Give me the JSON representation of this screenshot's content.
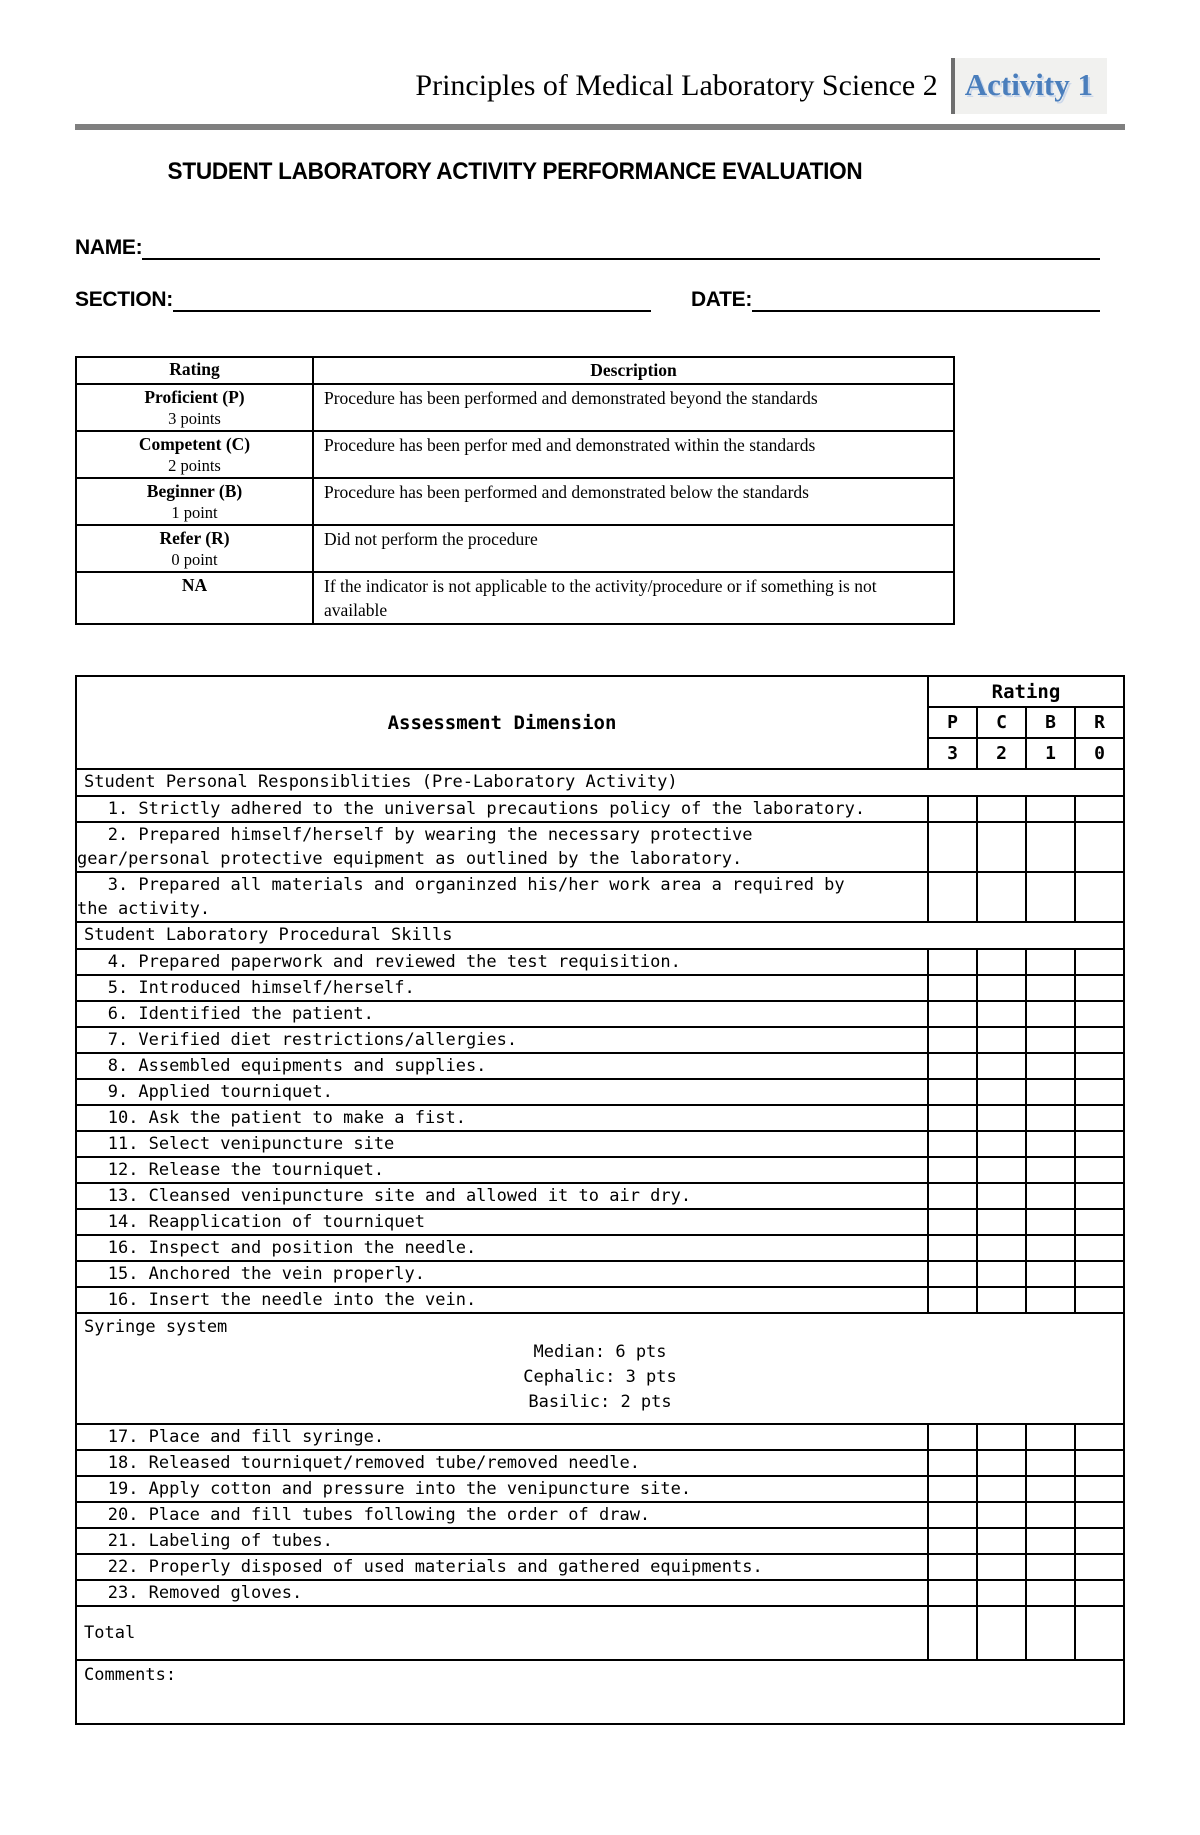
{
  "header": {
    "course_title": "Principles of Medical Laboratory Science 2",
    "activity_badge": "Activity 1",
    "accent_color": "#4a7ebc",
    "rule_color": "#7f7f7f"
  },
  "form": {
    "title": "STUDENT LABORATORY ACTIVITY PERFORMANCE EVALUATION",
    "name_label": "NAME:",
    "name_value": "",
    "section_label": "SECTION:",
    "section_value": "",
    "date_label": "DATE:",
    "date_value": ""
  },
  "rating_legend": {
    "headers": [
      "Rating",
      "Description"
    ],
    "rows": [
      {
        "rating": "Proficient (P)",
        "points": "3 points",
        "description": "Procedure has been performed and demonstrated beyond the standards"
      },
      {
        "rating": "Competent (C)",
        "points": "2 points",
        "description": "Procedure has been perfor med and demonstrated within the standards"
      },
      {
        "rating": "Beginner (B)",
        "points": "1 point",
        "description": "Procedure has been performed and demonstrated below the standards"
      },
      {
        "rating": "Refer (R)",
        "points": "0 point",
        "description": "Did not perform the procedure"
      },
      {
        "rating": "NA",
        "points": "",
        "description": "If the indicator is not applicable to the activity/procedure or if something is not available"
      }
    ]
  },
  "assessment_table": {
    "dimension_header": "Assessment Dimension",
    "rating_header": "Rating",
    "rating_letters": [
      "P",
      "C",
      "B",
      "R"
    ],
    "rating_points": [
      "3",
      "2",
      "1",
      "0"
    ],
    "rows": [
      {
        "type": "section",
        "text": "Student Personal Responsiblities (Pre-Laboratory Activity)"
      },
      {
        "type": "item",
        "text": "   1. Strictly adhered to the universal precautions policy of the laboratory."
      },
      {
        "type": "item",
        "text": "   2. Prepared himself/herself by wearing the necessary protective\ngear/personal protective equipment as outlined by the laboratory."
      },
      {
        "type": "item",
        "text": "   3. Prepared all materials and organinzed his/her work area a required by\nthe activity."
      },
      {
        "type": "section",
        "text": "Student Laboratory Procedural Skills"
      },
      {
        "type": "item",
        "text": "   4. Prepared paperwork and reviewed the test requisition."
      },
      {
        "type": "item",
        "text": "   5. Introduced himself/herself."
      },
      {
        "type": "item",
        "text": "   6. Identified the patient."
      },
      {
        "type": "item",
        "text": "   7. Verified diet restrictions/allergies."
      },
      {
        "type": "item",
        "text": "   8. Assembled equipments and supplies."
      },
      {
        "type": "item",
        "text": "   9. Applied tourniquet."
      },
      {
        "type": "item",
        "text": "   10. Ask the patient to make a fist."
      },
      {
        "type": "item",
        "text": "   11. Select venipuncture site"
      },
      {
        "type": "item",
        "text": "   12. Release the tourniquet."
      },
      {
        "type": "item",
        "text": "   13. Cleansed venipuncture site and allowed it to air dry."
      },
      {
        "type": "item",
        "text": "   14. Reapplication of tourniquet"
      },
      {
        "type": "item",
        "text": "   16. Inspect and position the needle."
      },
      {
        "type": "item",
        "text": "   15. Anchored the vein properly."
      },
      {
        "type": "item",
        "text": "   16. Insert the needle into the vein."
      },
      {
        "type": "syringe",
        "title": "Syringe system",
        "lines": [
          "Median: 6 pts",
          "Cephalic: 3 pts",
          "Basilic: 2 pts"
        ]
      },
      {
        "type": "item",
        "text": "   17. Place and fill syringe."
      },
      {
        "type": "item",
        "text": "   18. Released tourniquet/removed tube/removed needle."
      },
      {
        "type": "item",
        "text": "   19. Apply cotton and pressure into the venipuncture site."
      },
      {
        "type": "item",
        "text": "   20. Place and fill tubes following the order of draw."
      },
      {
        "type": "item",
        "text": "   21. Labeling of tubes."
      },
      {
        "type": "item",
        "text": "   22. Properly disposed of used materials and gathered equipments."
      },
      {
        "type": "item",
        "text": "   23. Removed gloves."
      },
      {
        "type": "total",
        "text": "Total"
      },
      {
        "type": "comments",
        "text": "Comments:"
      }
    ]
  }
}
